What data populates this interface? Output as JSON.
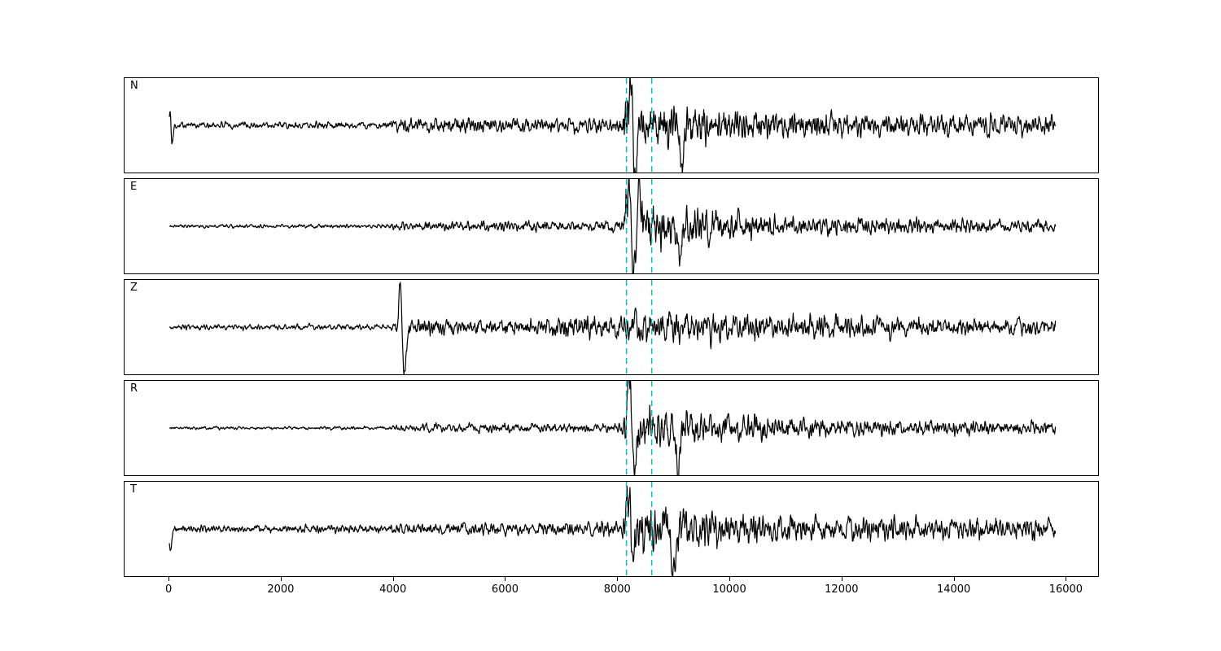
{
  "figure": {
    "background": "#ffffff",
    "trace_color": "#000000",
    "x_range": [
      -800,
      16560
    ],
    "data_x_range": [
      0,
      15800
    ],
    "x_ticks": [
      0,
      2000,
      4000,
      6000,
      8000,
      10000,
      12000,
      14000,
      16000
    ]
  },
  "chart_data": {
    "type": "line",
    "title": "",
    "xlabel": "",
    "ylabel": "",
    "description": "Five-component seismogram waveform panels (N, E, Z, R, T) sharing one x-axis 0-16000 samples; strong phase arrival near x=8200 bracketed by two cyan dashed marker lines; Z component shows an early large arrival near x=4100.",
    "x_ticks": [
      0,
      2000,
      4000,
      6000,
      8000,
      10000,
      12000,
      14000,
      16000
    ],
    "vlines": {
      "x": [
        8150,
        8600
      ],
      "style": "dashed",
      "color": "#00bfbf"
    },
    "panels": [
      {
        "label": "N",
        "seed": 101,
        "envelope": [
          [
            0,
            0.1
          ],
          [
            3800,
            0.11
          ],
          [
            4100,
            0.22
          ],
          [
            5000,
            0.25
          ],
          [
            7000,
            0.22
          ],
          [
            8050,
            0.25
          ],
          [
            8150,
            0.85
          ],
          [
            8600,
            0.7
          ],
          [
            9300,
            0.65
          ],
          [
            10000,
            0.5
          ],
          [
            11000,
            0.42
          ],
          [
            12500,
            0.35
          ],
          [
            15800,
            0.3
          ]
        ],
        "spikes": [
          {
            "x": 15,
            "amp": 0.45,
            "w": 18
          },
          {
            "x": 45,
            "amp": -0.5,
            "w": 25
          },
          {
            "x": 8230,
            "amp": 1.0,
            "w": 50
          },
          {
            "x": 8300,
            "amp": -1.35,
            "w": 55
          },
          {
            "x": 9150,
            "amp": -0.8,
            "w": 50
          }
        ]
      },
      {
        "label": "E",
        "seed": 202,
        "envelope": [
          [
            0,
            0.055
          ],
          [
            3900,
            0.06
          ],
          [
            4100,
            0.14
          ],
          [
            6000,
            0.16
          ],
          [
            8050,
            0.16
          ],
          [
            8150,
            0.9
          ],
          [
            8500,
            0.75
          ],
          [
            9100,
            0.7
          ],
          [
            9700,
            0.5
          ],
          [
            11000,
            0.35
          ],
          [
            13000,
            0.27
          ],
          [
            15800,
            0.22
          ]
        ],
        "spikes": [
          {
            "x": 8200,
            "amp": 0.9,
            "w": 45
          },
          {
            "x": 8280,
            "amp": -1.0,
            "w": 50
          },
          {
            "x": 8380,
            "amp": 0.95,
            "w": 45
          },
          {
            "x": 9100,
            "amp": -0.9,
            "w": 55
          }
        ]
      },
      {
        "label": "Z",
        "seed": 303,
        "envelope": [
          [
            0,
            0.1
          ],
          [
            3950,
            0.1
          ],
          [
            4060,
            0.45
          ],
          [
            4400,
            0.32
          ],
          [
            5200,
            0.28
          ],
          [
            6800,
            0.33
          ],
          [
            7000,
            0.45
          ],
          [
            8000,
            0.45
          ],
          [
            8300,
            0.55
          ],
          [
            9500,
            0.55
          ],
          [
            10800,
            0.45
          ],
          [
            12500,
            0.4
          ],
          [
            15800,
            0.33
          ]
        ],
        "spikes": [
          {
            "x": 4120,
            "amp": 1.25,
            "w": 40
          },
          {
            "x": 4185,
            "amp": -1.35,
            "w": 45
          }
        ]
      },
      {
        "label": "R",
        "seed": 404,
        "envelope": [
          [
            0,
            0.05
          ],
          [
            3900,
            0.055
          ],
          [
            4100,
            0.13
          ],
          [
            6000,
            0.15
          ],
          [
            8050,
            0.15
          ],
          [
            8150,
            0.9
          ],
          [
            8500,
            0.7
          ],
          [
            9200,
            0.6
          ],
          [
            10000,
            0.45
          ],
          [
            11500,
            0.32
          ],
          [
            13500,
            0.25
          ],
          [
            15800,
            0.22
          ]
        ],
        "spikes": [
          {
            "x": 8200,
            "amp": 1.1,
            "w": 45
          },
          {
            "x": 8290,
            "amp": -0.9,
            "w": 50
          },
          {
            "x": 9050,
            "amp": -0.85,
            "w": 55
          }
        ]
      },
      {
        "label": "T",
        "seed": 505,
        "envelope": [
          [
            0,
            0.12
          ],
          [
            3900,
            0.13
          ],
          [
            4200,
            0.18
          ],
          [
            6000,
            0.2
          ],
          [
            8050,
            0.22
          ],
          [
            8150,
            0.9
          ],
          [
            8700,
            0.7
          ],
          [
            9500,
            0.6
          ],
          [
            10500,
            0.48
          ],
          [
            12000,
            0.4
          ],
          [
            15800,
            0.32
          ]
        ],
        "spikes": [
          {
            "x": 20,
            "amp": -0.55,
            "w": 30
          },
          {
            "x": 8200,
            "amp": 1.2,
            "w": 45
          },
          {
            "x": 8280,
            "amp": -0.9,
            "w": 50
          },
          {
            "x": 9000,
            "amp": -0.9,
            "w": 50
          }
        ]
      }
    ]
  }
}
